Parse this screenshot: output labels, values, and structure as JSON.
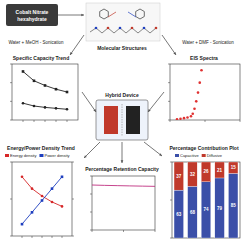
{
  "diagram": {
    "precursor": [
      "Cobalt Nitrate",
      "hexahydrate"
    ],
    "structures_label": "Molecular Structures",
    "route_left": "Water + MeOH - Sonication",
    "route_right": "Water + DMF - Sonication",
    "device": "Hybrid Device"
  },
  "chart_data": [
    {
      "type": "line",
      "title": "Specific Capacity Trend",
      "x": [
        1,
        2,
        3,
        4,
        5
      ],
      "series": [
        {
          "color": "#222222",
          "marker": "square",
          "values": [
            520,
            420,
            370,
            330,
            300
          ]
        },
        {
          "color": "#222222",
          "marker": "circle",
          "values": [
            180,
            150,
            135,
            125,
            115
          ]
        }
      ],
      "xlim": [
        0,
        6
      ],
      "xticks": [
        1,
        2,
        3,
        4,
        5
      ],
      "ylim": [
        0,
        600
      ],
      "yticks": [
        0,
        200,
        400,
        600
      ],
      "tick_labels": false
    },
    {
      "type": "scatter",
      "title": "EIS Spectra",
      "x": [
        2,
        3,
        4,
        5,
        6,
        6.5,
        7,
        7.5,
        8,
        8.5,
        9
      ],
      "series": [
        {
          "color": "#e03030",
          "marker": "circle",
          "values": [
            0.5,
            1,
            1.5,
            2,
            3,
            5,
            9,
            15,
            22,
            30,
            40
          ]
        }
      ],
      "xlim": [
        0,
        20
      ],
      "xticks": [
        0,
        10,
        20
      ],
      "ylim": [
        0,
        45
      ],
      "yticks": [
        0,
        15,
        30,
        45
      ],
      "tick_labels": false
    },
    {
      "type": "line",
      "title": "Energy/Power Density Trend",
      "x": [
        1,
        2,
        3,
        4,
        5
      ],
      "series": [
        {
          "name": "Energy density",
          "color": "#d62728",
          "marker": "circle",
          "values": [
            40,
            32,
            27,
            23,
            20
          ]
        },
        {
          "name": "Power density",
          "color": "#1f3fbf",
          "marker": "square",
          "axis": "y2",
          "values": [
            800,
            1600,
            2400,
            3200,
            4000
          ]
        }
      ],
      "xlim": [
        0,
        6
      ],
      "xticks": [
        1,
        2,
        3,
        4,
        5
      ],
      "ylim": [
        0,
        50
      ],
      "yticks": [
        0,
        25,
        50
      ],
      "y2lim": [
        0,
        5000
      ],
      "y2ticks": [
        0,
        2500,
        5000
      ],
      "legend": "top",
      "tick_labels": false
    },
    {
      "type": "line",
      "title": "Percentage Retention Capacity",
      "x": [
        0,
        1000,
        2000,
        3000,
        4000,
        5000
      ],
      "series": [
        {
          "color": "#c03080",
          "line_style": "solid",
          "values": [
            100,
            99.2,
            98.6,
            98,
            97.5,
            97
          ]
        }
      ],
      "xlim": [
        0,
        5000
      ],
      "xticks": [
        0,
        2500,
        5000
      ],
      "ylim": [
        0,
        120
      ],
      "yticks": [
        0,
        40,
        80,
        120
      ],
      "tick_labels": false
    },
    {
      "type": "bar",
      "stacked": true,
      "title": "Percentage Contribution Plot",
      "categories": [
        null,
        null,
        null,
        null,
        null
      ],
      "series": [
        {
          "name": "Capacitive",
          "color": "#3b4fa8",
          "values": [
            63,
            68,
            74,
            79,
            85
          ]
        },
        {
          "name": "Diffusive",
          "color": "#c0392b",
          "values": [
            37,
            32,
            26,
            21,
            15
          ]
        }
      ],
      "ylim": [
        0,
        100
      ],
      "yticks": [
        0,
        50,
        100
      ],
      "data_labels": true,
      "legend": "top",
      "tick_labels": false
    }
  ]
}
